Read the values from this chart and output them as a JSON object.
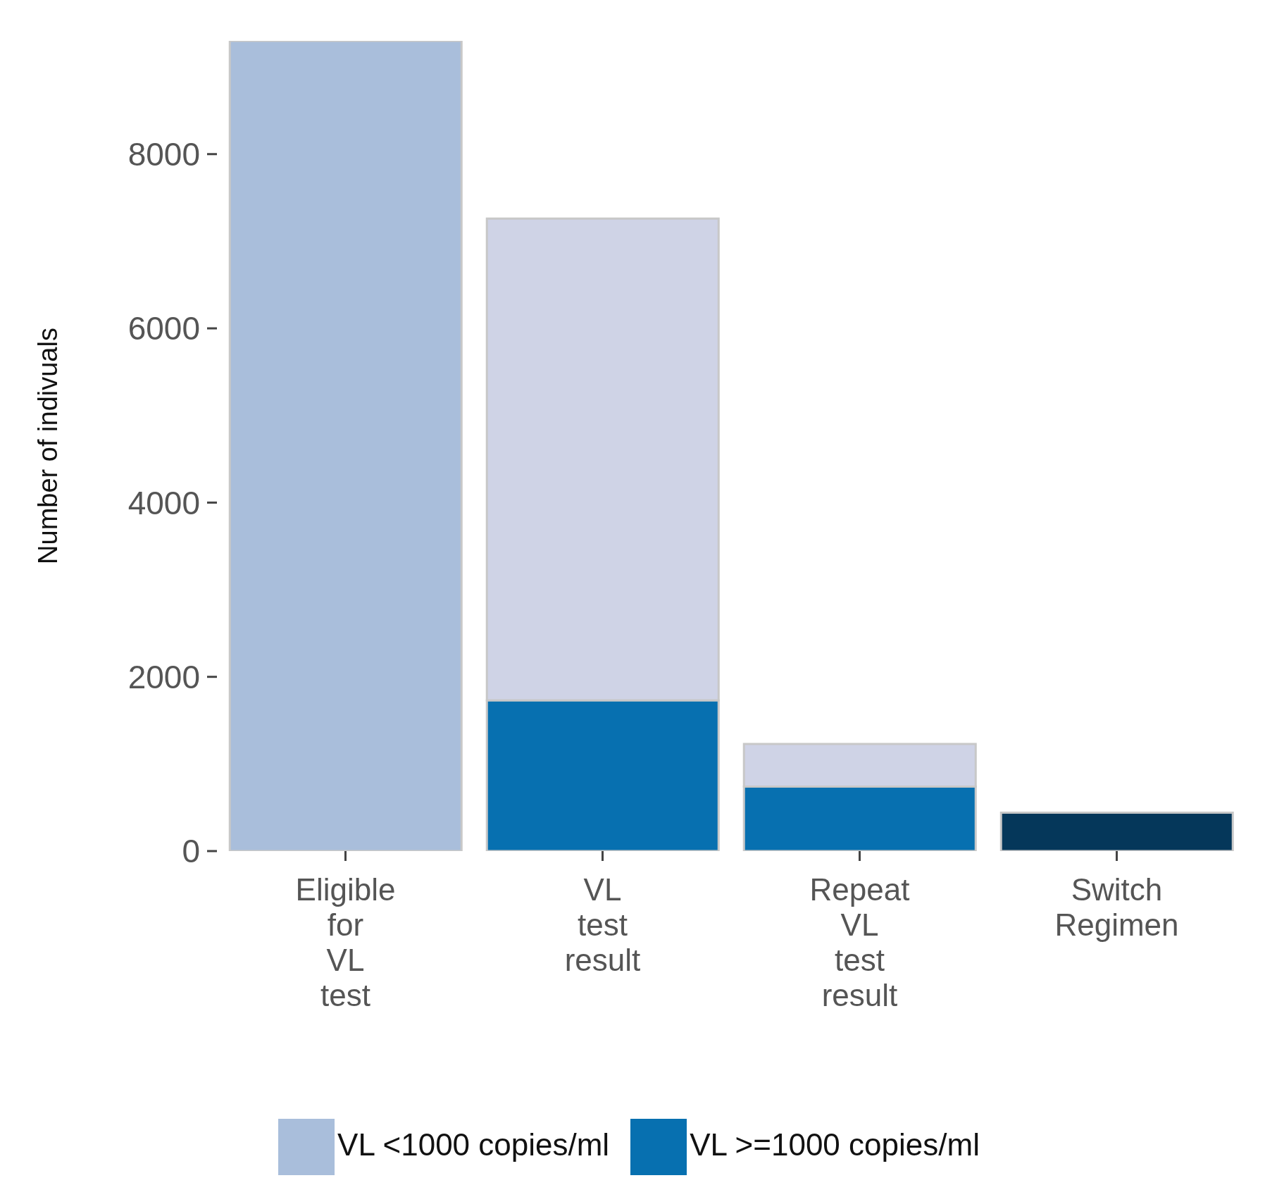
{
  "chart_data": {
    "type": "bar",
    "ylabel": "Number of indivuals",
    "categories": [
      "Eligible for VL test",
      "VL test result",
      "Repeat VL test result",
      "Switch Regimen"
    ],
    "stacked": true,
    "series": [
      {
        "name": "VL <1000 copies/ml",
        "color": "#a9bedb",
        "values": [
          9300,
          null,
          null,
          null
        ]
      },
      {
        "name": "VL >=1000 copies/ml",
        "color": "#0770b0",
        "values": [
          null,
          1730,
          740,
          null
        ]
      },
      {
        "color": "#cfd3e6",
        "values": [
          null,
          5530,
          490,
          null
        ]
      },
      {
        "color": "#05375a",
        "values": [
          null,
          null,
          null,
          440
        ]
      }
    ],
    "ylim": [
      0,
      9300
    ],
    "yticks": [
      0,
      2000,
      4000,
      6000,
      8000
    ],
    "grid": false,
    "legend": "bottom"
  }
}
